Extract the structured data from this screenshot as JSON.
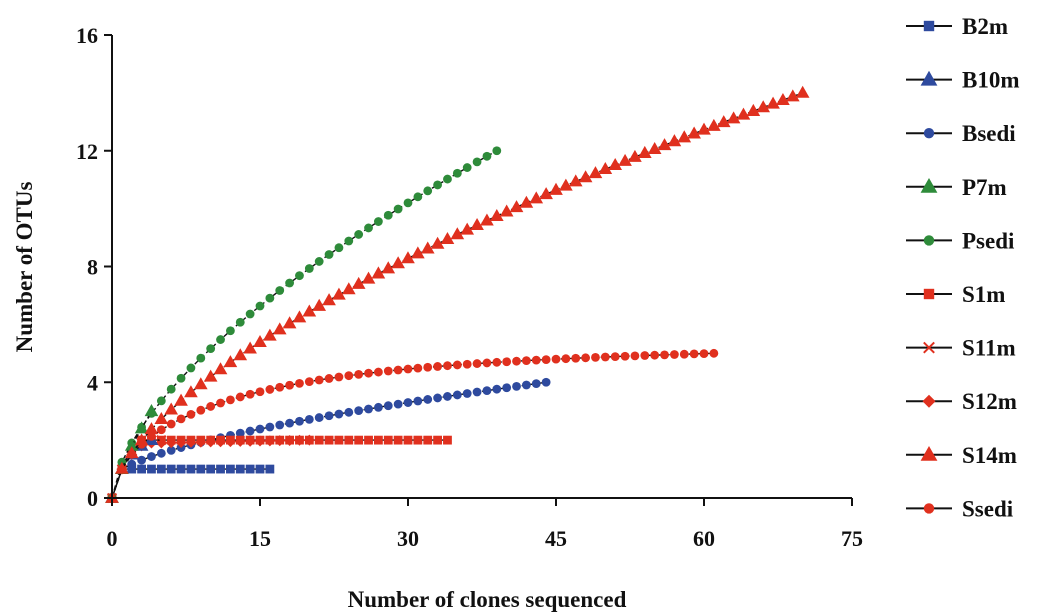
{
  "chart_data": {
    "type": "line",
    "xlabel": "Number of clones sequenced",
    "ylabel": "Number of OTUs",
    "xlim": [
      0,
      75
    ],
    "ylim": [
      0,
      16
    ],
    "xticks": [
      0,
      15,
      30,
      45,
      60,
      75
    ],
    "yticks": [
      0,
      4,
      8,
      12,
      16
    ],
    "grid": false,
    "legend_position": "right",
    "colors": {
      "blue": "#2e4a9e",
      "green": "#2e8b3a",
      "red": "#e0301e",
      "line": "#111111"
    },
    "series": [
      {
        "name": "B2m",
        "color": "#2e4a9e",
        "marker": "square",
        "x_start": 0,
        "x_end": 16,
        "points": [
          [
            0,
            0
          ],
          [
            1,
            1
          ],
          [
            16,
            1
          ]
        ],
        "curve": "step"
      },
      {
        "name": "B10m",
        "color": "#2e4a9e",
        "marker": "triangle",
        "x_start": 0,
        "x_end": 4,
        "points": [
          [
            0,
            0
          ],
          [
            1,
            1
          ],
          [
            2,
            1.5
          ],
          [
            3,
            1.8
          ],
          [
            4,
            2
          ]
        ],
        "curve": "linear"
      },
      {
        "name": "Bsedi",
        "color": "#2e4a9e",
        "marker": "circle",
        "x_start": 0,
        "x_end": 44,
        "points": [
          [
            0,
            0
          ],
          [
            1,
            1
          ],
          [
            44,
            4
          ]
        ],
        "curve": "sqrt"
      },
      {
        "name": "P7m",
        "color": "#2e8b3a",
        "marker": "triangle",
        "x_start": 0,
        "x_end": 4,
        "points": [
          [
            0,
            0
          ],
          [
            1,
            1
          ],
          [
            2,
            1.8
          ],
          [
            3,
            2.4
          ],
          [
            4,
            3
          ]
        ],
        "curve": "linear"
      },
      {
        "name": "Psedi",
        "color": "#2e8b3a",
        "marker": "circle",
        "x_start": 0,
        "x_end": 39,
        "points": [
          [
            0,
            0
          ],
          [
            39,
            12
          ]
        ],
        "curve": "sqrt"
      },
      {
        "name": "S1m",
        "color": "#e0301e",
        "marker": "square",
        "x_start": 0,
        "x_end": 34,
        "points": [
          [
            0,
            0
          ],
          [
            1,
            1
          ],
          [
            2,
            1.6
          ],
          [
            3,
            2
          ],
          [
            34,
            2
          ]
        ],
        "curve": "step"
      },
      {
        "name": "S11m",
        "color": "#e0301e",
        "marker": "x",
        "x_start": 0,
        "x_end": 5,
        "points": [
          [
            0,
            0
          ],
          [
            1,
            1
          ],
          [
            2,
            1.6
          ],
          [
            3,
            1.9
          ],
          [
            4,
            2
          ],
          [
            5,
            2
          ]
        ],
        "curve": "linear"
      },
      {
        "name": "S12m",
        "color": "#e0301e",
        "marker": "diamond",
        "x_start": 0,
        "x_end": 20,
        "points": [
          [
            0,
            0
          ],
          [
            1,
            1
          ],
          [
            2,
            1.5
          ],
          [
            3,
            1.8
          ],
          [
            4,
            1.9
          ],
          [
            20,
            2
          ]
        ],
        "curve": "step"
      },
      {
        "name": "S14m",
        "color": "#e0301e",
        "marker": "triangle",
        "x_start": 0,
        "x_end": 70,
        "points": [
          [
            0,
            0
          ],
          [
            70,
            14
          ]
        ],
        "curve": "sqrt"
      },
      {
        "name": "Ssedi",
        "color": "#e0301e",
        "marker": "circle",
        "x_start": 0,
        "x_end": 61,
        "points": [
          [
            0,
            0
          ],
          [
            1,
            1
          ],
          [
            61,
            5
          ]
        ],
        "curve": "sat"
      }
    ]
  }
}
